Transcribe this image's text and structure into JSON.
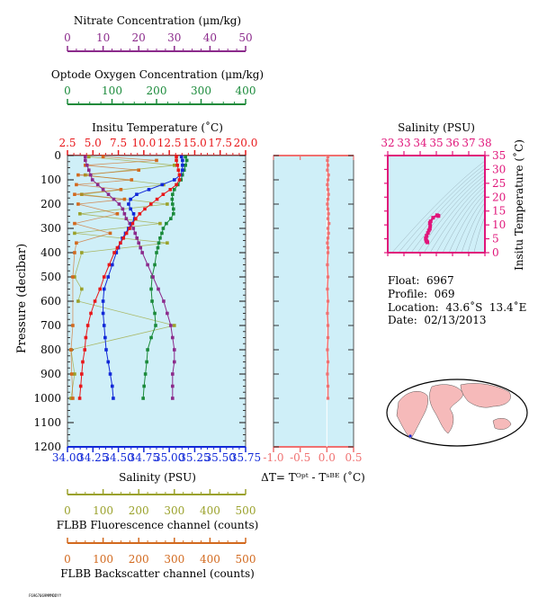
{
  "axes_titles": {
    "nitrate": "Nitrate Concentration (μm/kg)",
    "oxygen": "Optode Oxygen Concentration (μm/kg)",
    "temperature": "Insitu Temperature (˚C)",
    "salinity_top": "Salinity (PSU)",
    "salinity_bottom": "Salinity (PSU)",
    "pressure": "Pressure (decibar)",
    "delta_t": "ΔT= Tᴼᵖᵗ - Tˢᴮᴱ (˚C)",
    "ts_salinity": "Salinity (PSU)",
    "ts_temperature": "Insitu Temperature (˚C)",
    "flbb_fluor": "FLBB Fluorescence channel (counts)",
    "flbb_back": "FLBB Backscatter channel (counts)"
  },
  "info": {
    "float": "Float:  6967",
    "profile": "Profile:  069",
    "location": "Location:  43.6˚S  13.4˚E",
    "date": "Date:  02/13/2013"
  },
  "footer_id": "F6967069MMMDDYY",
  "colors": {
    "nitrate": "#8B2A8B",
    "oxygen": "#1A8A3A",
    "temperature": "#E8171A",
    "salinity": "#1128D8",
    "fluorescence": "#9AA12A",
    "backscatter": "#D2691E",
    "delta": "#F07070",
    "ts": "#E0157A",
    "panel_bg": "#CFEFF8",
    "map_land": "#F6BABA"
  },
  "chart_data": [
    {
      "type": "line",
      "panel": "profiles",
      "ylim": [
        1200,
        0
      ],
      "yticks": [
        0,
        100,
        200,
        300,
        400,
        500,
        600,
        700,
        800,
        900,
        1000,
        1100,
        1200
      ],
      "axes": {
        "temperature": {
          "lim": [
            2.5,
            20.0
          ],
          "ticks": [
            "2.5",
            "5.0",
            "7.5",
            "10.0",
            "12.5",
            "15.0",
            "17.5",
            "20.0"
          ]
        },
        "salinity": {
          "lim": [
            34.0,
            35.75
          ],
          "ticks": [
            "34.00",
            "34.25",
            "34.50",
            "34.75",
            "35.00",
            "35.25",
            "35.50",
            "35.75"
          ]
        },
        "oxygen": {
          "lim": [
            0,
            400
          ],
          "ticks": [
            "0",
            "100",
            "200",
            "300",
            "400"
          ]
        },
        "nitrate": {
          "lim": [
            0,
            50
          ],
          "ticks": [
            "0",
            "10",
            "20",
            "30",
            "40",
            "50"
          ]
        },
        "fluorescence": {
          "lim": [
            0,
            500
          ],
          "ticks": [
            "0",
            "100",
            "200",
            "300",
            "400",
            "500"
          ]
        },
        "backscatter": {
          "lim": [
            0,
            500
          ],
          "ticks": [
            "0",
            "100",
            "200",
            "300",
            "400",
            "500"
          ]
        }
      },
      "series": [
        {
          "key": "temperature",
          "axis": "temperature",
          "p": [
            5,
            20,
            40,
            60,
            80,
            100,
            120,
            140,
            160,
            180,
            200,
            220,
            240,
            260,
            280,
            300,
            320,
            340,
            360,
            380,
            400,
            450,
            500,
            550,
            600,
            650,
            700,
            750,
            800,
            850,
            900,
            950,
            1000
          ],
          "v": [
            13.2,
            13.2,
            13.3,
            13.4,
            13.5,
            13.5,
            13.2,
            12.6,
            11.9,
            11.3,
            10.7,
            10.1,
            9.6,
            9.2,
            8.9,
            8.6,
            8.3,
            8.0,
            7.7,
            7.4,
            7.1,
            6.6,
            6.1,
            5.7,
            5.2,
            4.8,
            4.5,
            4.3,
            4.2,
            4.0,
            3.9,
            3.8,
            3.7
          ]
        },
        {
          "key": "salinity",
          "axis": "salinity",
          "p": [
            5,
            20,
            40,
            60,
            80,
            100,
            120,
            140,
            160,
            180,
            200,
            220,
            240,
            260,
            280,
            300,
            320,
            340,
            360,
            380,
            400,
            450,
            500,
            550,
            600,
            650,
            700,
            750,
            800,
            850,
            900,
            950,
            1000
          ],
          "v": [
            35.12,
            35.13,
            35.13,
            35.13,
            35.11,
            35.05,
            34.93,
            34.8,
            34.68,
            34.62,
            34.6,
            34.62,
            34.65,
            34.66,
            34.63,
            34.6,
            34.57,
            34.54,
            34.52,
            34.5,
            34.48,
            34.44,
            34.4,
            34.36,
            34.35,
            34.35,
            34.36,
            34.37,
            34.38,
            34.4,
            34.42,
            34.44,
            34.45
          ]
        },
        {
          "key": "oxygen",
          "axis": "oxygen",
          "p": [
            5,
            20,
            40,
            60,
            80,
            100,
            120,
            140,
            160,
            180,
            200,
            220,
            240,
            260,
            280,
            300,
            320,
            340,
            360,
            380,
            400,
            450,
            500,
            550,
            600,
            650,
            700,
            750,
            800,
            850,
            900,
            950,
            1000
          ],
          "v": [
            265,
            268,
            265,
            262,
            258,
            255,
            248,
            240,
            236,
            235,
            236,
            238,
            238,
            232,
            222,
            215,
            212,
            208,
            205,
            203,
            200,
            196,
            190,
            188,
            190,
            196,
            198,
            188,
            180,
            178,
            175,
            172,
            170
          ]
        },
        {
          "key": "nitrate",
          "axis": "nitrate",
          "p": [
            5,
            20,
            40,
            60,
            80,
            100,
            120,
            140,
            160,
            180,
            200,
            220,
            240,
            260,
            280,
            300,
            320,
            340,
            360,
            380,
            400,
            450,
            500,
            550,
            600,
            650,
            700,
            750,
            800,
            850,
            900,
            950,
            1000
          ],
          "v": [
            5.0,
            5.0,
            5.5,
            6.0,
            6.5,
            7.0,
            8.5,
            10.0,
            11.5,
            13.0,
            14.5,
            15.5,
            16.0,
            16.5,
            17.5,
            18.5,
            19.0,
            19.5,
            20.0,
            20.5,
            21.0,
            22.5,
            24.0,
            25.5,
            27.0,
            28.0,
            29.0,
            29.5,
            30.0,
            30.0,
            29.5,
            29.5,
            29.5
          ]
        },
        {
          "key": "fluorescence",
          "axis": "fluorescence",
          "p": [
            5,
            40,
            80,
            120,
            160,
            200,
            240,
            280,
            320,
            360,
            400,
            500,
            550,
            600,
            700,
            800,
            900,
            1000
          ],
          "v": [
            60,
            300,
            50,
            270,
            40,
            280,
            35,
            260,
            20,
            280,
            40,
            20,
            40,
            30,
            300,
            10,
            20,
            10
          ]
        },
        {
          "key": "backscatter",
          "axis": "backscatter",
          "p": [
            5,
            20,
            40,
            60,
            80,
            100,
            120,
            140,
            160,
            180,
            200,
            240,
            280,
            320,
            360,
            400,
            500,
            700,
            800,
            900,
            1000
          ],
          "v": [
            100,
            250,
            50,
            200,
            30,
            180,
            25,
            150,
            20,
            160,
            30,
            140,
            20,
            120,
            25,
            20,
            15,
            15,
            10,
            12,
            15
          ]
        }
      ]
    },
    {
      "type": "scatter",
      "panel": "delta_t",
      "xlim": [
        -1.0,
        0.5
      ],
      "xticks": [
        "-1.0",
        "-0.5",
        "0.0",
        "0.5"
      ],
      "ylim": [
        1200,
        0
      ],
      "p": [
        5,
        20,
        40,
        60,
        80,
        100,
        120,
        140,
        160,
        180,
        200,
        220,
        240,
        260,
        280,
        300,
        320,
        340,
        360,
        380,
        400,
        450,
        500,
        550,
        600,
        650,
        700,
        750,
        800,
        850,
        900,
        950,
        1000
      ],
      "v": [
        0.02,
        0.01,
        0.02,
        0.01,
        0.03,
        0.02,
        0.01,
        0.02,
        0.03,
        0.02,
        0.01,
        0.02,
        0.03,
        0.02,
        0.04,
        0.02,
        0.03,
        0.02,
        0.01,
        0.02,
        0.02,
        0.01,
        0.02,
        0.01,
        0.02,
        0.01,
        0.02,
        0.02,
        0.01,
        0.02,
        0.01,
        0.02,
        0.02
      ]
    },
    {
      "type": "scatter",
      "panel": "ts_diagram",
      "xlim": [
        32,
        38
      ],
      "xticks": [
        "32",
        "33",
        "34",
        "35",
        "36",
        "37",
        "38"
      ],
      "ylim": [
        0,
        35
      ],
      "yticks": [
        "0",
        "5",
        "10",
        "15",
        "20",
        "25",
        "30",
        "35"
      ],
      "salinity": [
        34.45,
        34.42,
        34.38,
        34.36,
        34.35,
        34.4,
        34.48,
        34.54,
        34.6,
        34.62,
        34.6,
        34.65,
        34.8,
        35.05,
        35.13,
        35.12
      ],
      "temperature": [
        3.7,
        4.0,
        4.3,
        4.8,
        5.2,
        6.1,
        7.1,
        8.0,
        8.6,
        9.6,
        10.7,
        11.3,
        12.6,
        13.5,
        13.3,
        13.2
      ]
    }
  ]
}
